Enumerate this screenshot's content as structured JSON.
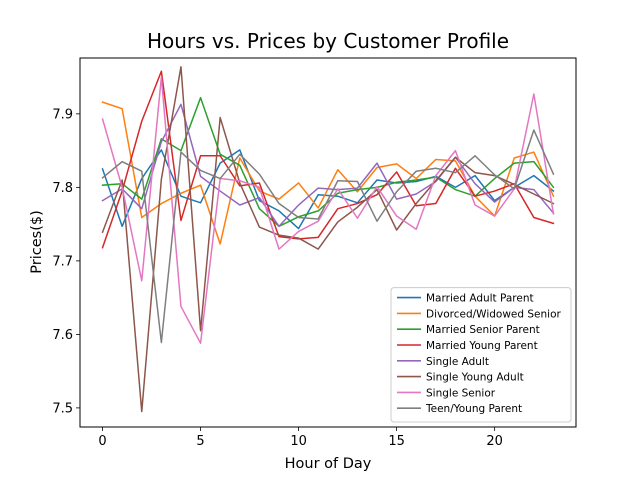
{
  "chart_data": {
    "type": "line",
    "title": "Hours vs. Prices by Customer Profile",
    "xlabel": "Hour of Day",
    "ylabel": "Prices($)",
    "xlim": [
      -1.15,
      24.15
    ],
    "ylim": [
      7.474,
      7.976
    ],
    "xticks": [
      0,
      5,
      10,
      15,
      20
    ],
    "yticks": [
      7.5,
      7.6,
      7.7,
      7.8,
      7.9
    ],
    "grid": false,
    "legend_position": "lower-right",
    "x": [
      0,
      1,
      2,
      3,
      4,
      5,
      6,
      7,
      8,
      9,
      10,
      11,
      12,
      13,
      14,
      15,
      16,
      17,
      18,
      19,
      20,
      21,
      22,
      23
    ],
    "series": [
      {
        "name": "Married Adult Parent",
        "color": "#1f77b4",
        "values": [
          7.825,
          7.747,
          7.812,
          7.851,
          7.788,
          7.779,
          7.833,
          7.851,
          7.782,
          7.768,
          7.744,
          7.79,
          7.788,
          7.779,
          7.81,
          7.806,
          7.808,
          7.815,
          7.8,
          7.816,
          7.782,
          7.8,
          7.816,
          7.795
        ]
      },
      {
        "name": "Divorced/Widowed Senior",
        "color": "#ff7f0e",
        "values": [
          7.916,
          7.907,
          7.759,
          7.778,
          7.792,
          7.803,
          7.723,
          7.84,
          7.795,
          7.784,
          7.806,
          7.772,
          7.824,
          7.794,
          7.827,
          7.832,
          7.812,
          7.838,
          7.836,
          7.788,
          7.761,
          7.84,
          7.848,
          7.788
        ]
      },
      {
        "name": "Married Senior Parent",
        "color": "#2ca02c",
        "values": [
          7.803,
          7.805,
          7.784,
          7.866,
          7.85,
          7.922,
          7.845,
          7.83,
          7.771,
          7.747,
          7.76,
          7.768,
          7.792,
          7.797,
          7.8,
          7.807,
          7.81,
          7.814,
          7.797,
          7.788,
          7.812,
          7.833,
          7.835,
          7.8
        ]
      },
      {
        "name": "Married Young Parent",
        "color": "#d62728",
        "values": [
          7.718,
          7.795,
          7.89,
          7.958,
          7.755,
          7.843,
          7.843,
          7.802,
          7.806,
          7.733,
          7.73,
          7.732,
          7.771,
          7.778,
          7.79,
          7.821,
          7.775,
          7.778,
          7.826,
          7.788,
          7.795,
          7.805,
          7.759,
          7.751
        ]
      },
      {
        "name": "Single Adult",
        "color": "#9467bd",
        "values": [
          7.782,
          7.798,
          7.771,
          7.862,
          7.913,
          7.815,
          7.795,
          7.776,
          7.786,
          7.747,
          7.776,
          7.799,
          7.797,
          7.799,
          7.833,
          7.784,
          7.791,
          7.808,
          7.841,
          7.805,
          7.78,
          7.8,
          7.797,
          7.765
        ]
      },
      {
        "name": "Single Young Adult",
        "color": "#8c564b",
        "values": [
          7.739,
          7.81,
          7.495,
          7.811,
          7.964,
          7.605,
          7.895,
          7.806,
          7.746,
          7.735,
          7.731,
          7.716,
          7.753,
          7.773,
          7.797,
          7.742,
          7.778,
          7.809,
          7.841,
          7.82,
          7.816,
          7.804,
          7.791,
          7.778
        ]
      },
      {
        "name": "Single Senior",
        "color": "#e377c2",
        "values": [
          7.893,
          7.8,
          7.673,
          7.95,
          7.638,
          7.588,
          7.812,
          7.809,
          7.8,
          7.716,
          7.74,
          7.754,
          7.798,
          7.758,
          7.801,
          7.761,
          7.743,
          7.816,
          7.85,
          7.776,
          7.761,
          7.798,
          7.927,
          7.764
        ]
      },
      {
        "name": "Teen/Young Parent",
        "color": "#7f7f7f",
        "values": [
          7.813,
          7.835,
          7.822,
          7.589,
          7.848,
          7.823,
          7.812,
          7.845,
          7.818,
          7.778,
          7.759,
          7.757,
          7.809,
          7.808,
          7.754,
          7.794,
          7.822,
          7.826,
          7.82,
          7.843,
          7.817,
          7.798,
          7.878,
          7.818
        ]
      }
    ]
  }
}
